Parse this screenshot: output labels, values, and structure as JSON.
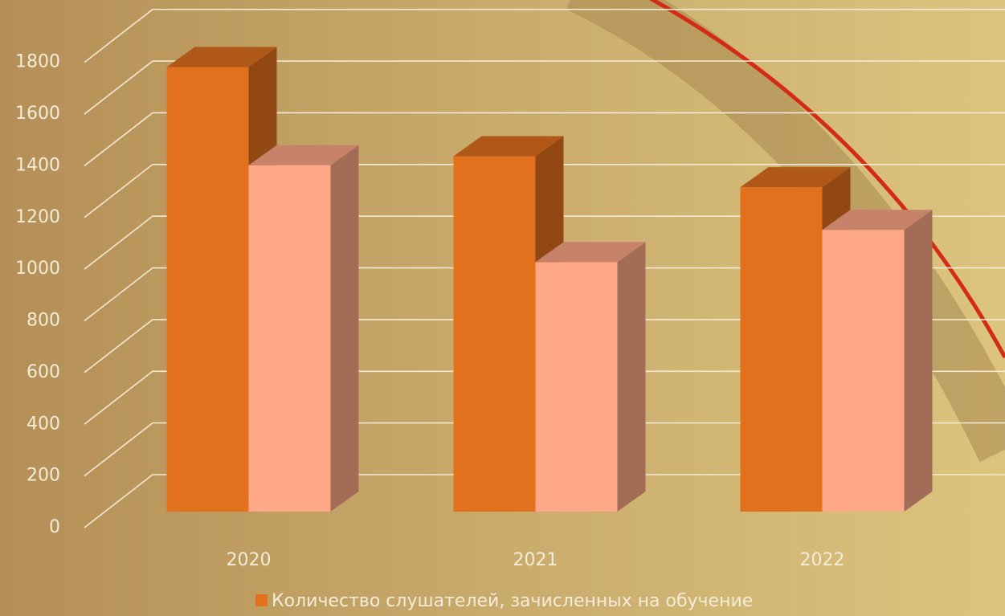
{
  "chart_data": {
    "type": "bar3d",
    "categories": [
      "2020",
      "2021",
      "2022"
    ],
    "series": [
      {
        "name": "Количество слушателей, зачисленных на обучение",
        "color": "#e2711e",
        "values": [
          1720,
          1375,
          1255
        ]
      },
      {
        "color": "#ffa888",
        "values": [
          1340,
          965,
          1090
        ]
      }
    ],
    "ylim": [
      0,
      1800
    ],
    "yticks": [
      0,
      200,
      400,
      600,
      800,
      1000,
      1200,
      1400,
      1600,
      1800
    ],
    "grid": true
  }
}
